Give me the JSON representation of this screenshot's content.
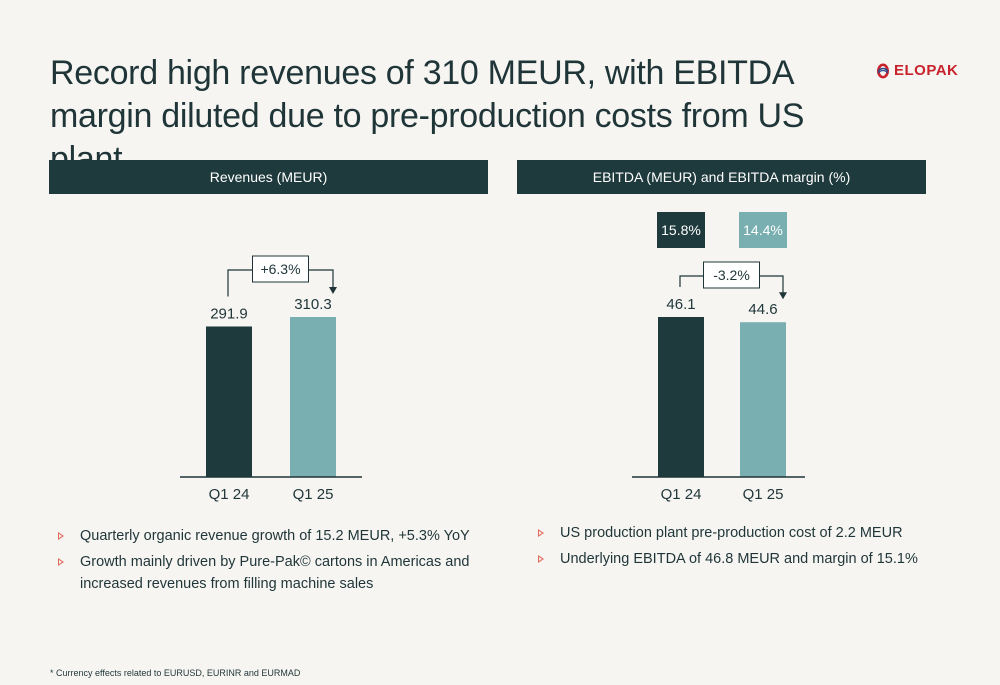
{
  "title": "Record high revenues of 310 MEUR, with EBITDA margin diluted due to pre-production costs from US plant",
  "logo": {
    "text": "ELOPAK",
    "icon": "elopak-logo-icon",
    "color": "#c8232c"
  },
  "colors": {
    "dark": "#1f3a3d",
    "light": "#7aafb2",
    "accent": "#e36b5c"
  },
  "left_panel": {
    "header": "Revenues (MEUR)",
    "change_label": "+6.3%",
    "bullets": [
      "Quarterly organic revenue growth of 15.2 MEUR, +5.3% YoY",
      "Growth mainly driven by Pure-Pak© cartons in Americas and increased revenues from filling machine sales"
    ]
  },
  "right_panel": {
    "header": "EBITDA (MEUR) and EBITDA margin (%)",
    "change_label": "-3.2%",
    "margins": [
      "15.8%",
      "14.4%"
    ],
    "bullets": [
      "US production plant pre-production cost of 2.2 MEUR",
      "Underlying EBITDA of 46.8 MEUR and margin of 15.1%"
    ]
  },
  "chart_data": [
    {
      "type": "bar",
      "title": "Revenues (MEUR)",
      "categories": [
        "Q1 24",
        "Q1 25"
      ],
      "values": [
        291.9,
        310.3
      ],
      "value_labels": [
        "291.9",
        "310.3"
      ],
      "bar_colors": [
        "#1f3a3d",
        "#7aafb2"
      ],
      "change": "+6.3%"
    },
    {
      "type": "bar",
      "title": "EBITDA (MEUR) and EBITDA margin (%)",
      "categories": [
        "Q1 24",
        "Q1 25"
      ],
      "values": [
        46.1,
        44.6
      ],
      "value_labels": [
        "46.1",
        "44.6"
      ],
      "margins": [
        15.8,
        14.4
      ],
      "bar_colors": [
        "#1f3a3d",
        "#7aafb2"
      ],
      "change": "-3.2%"
    }
  ],
  "footnote": "* Currency effects related to EURUSD, EURINR and EURMAD"
}
